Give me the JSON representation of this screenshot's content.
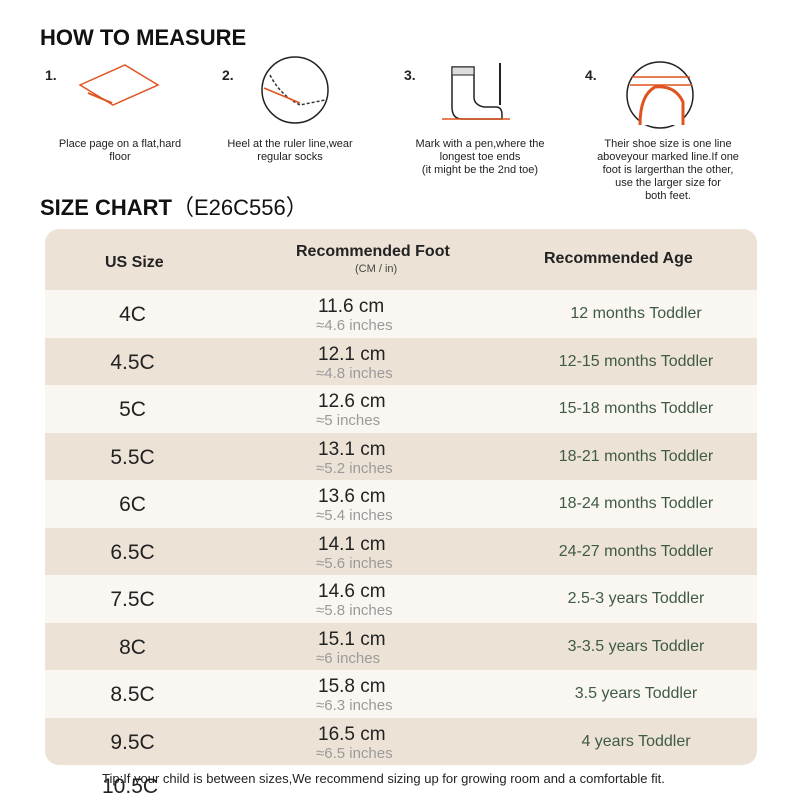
{
  "measure": {
    "title": "HOW TO MEASURE",
    "steps": [
      {
        "number": "1.",
        "caption": [
          "Place page on a flat,hard",
          "floor"
        ]
      },
      {
        "number": "2.",
        "caption": [
          "Heel at the ruler line,wear",
          "regular socks"
        ]
      },
      {
        "number": "3.",
        "caption": [
          "Mark with a pen,where the",
          "longest toe ends",
          "(it might be the 2nd toe)"
        ]
      },
      {
        "number": "4.",
        "caption": [
          "Their shoe size is one line",
          "aboveyour marked line.If one",
          "foot is largerthan the other,",
          "use the larger size for",
          "both feet."
        ]
      }
    ]
  },
  "size_chart": {
    "title": "SIZE CHART",
    "code": "（E26C556）",
    "header": {
      "size": "US Size",
      "foot": "Recommended Foot",
      "foot_unit": "(CM / in)",
      "age": "Recommended Age"
    },
    "rows": [
      [
        "4C",
        "11.6 cm",
        "≈4.6 inches",
        "12 months Toddler"
      ],
      [
        "4.5C",
        "12.1 cm",
        "≈4.8 inches",
        "12-15 months Toddler"
      ],
      [
        "5C",
        "12.6 cm",
        "≈5 inches",
        "15-18 months Toddler"
      ],
      [
        "5.5C",
        "13.1 cm",
        "≈5.2 inches",
        "18-21 months Toddler"
      ],
      [
        "6C",
        "13.6 cm",
        "≈5.4 inches",
        "18-24 months Toddler"
      ],
      [
        "6.5C",
        "14.1 cm",
        "≈5.6 inches",
        "24-27 months Toddler"
      ],
      [
        "7.5C",
        "14.6 cm",
        "≈5.8 inches",
        "2.5-3 years Toddler"
      ],
      [
        "8C",
        "15.1 cm",
        "≈6 inches",
        "3-3.5 years Toddler"
      ],
      [
        "8.5C",
        "15.8 cm",
        "≈6.3 inches",
        "3.5 years Toddler"
      ],
      [
        "9.5C",
        "16.5 cm",
        "≈6.5 inches",
        "4 years Toddler"
      ]
    ],
    "tip": "Tip:If your child is between sizes,We recommend sizing up for growing room and a comfortable fit.",
    "overflow_size": "10.5C"
  }
}
